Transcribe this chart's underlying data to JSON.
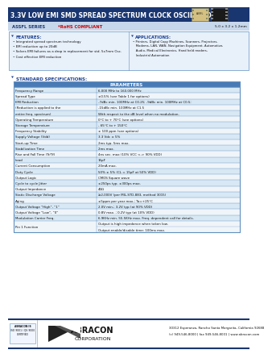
{
  "title": "3.3V LOW EMI SMD SPREAD SPECTRUM CLOCK OSCILLATOR",
  "series_label": "ASSFL SERIES",
  "rohs": "*RoHS COMPLIANT",
  "size_label": "5.0 x 3.2 x 1.2mm",
  "features_title": "FEATURES:",
  "features": [
    "• Integrated spread spectrum technology",
    "• EMI reduction up to 20dB",
    "• Solves EMI failures as a drop in replacement for std. 5x7mm Osc.",
    "• Cost effective EMI reduction"
  ],
  "applications_title": "APPLICATIONS:",
  "applications": [
    "• Printers, Digital Copy Machines, Scanners, Projectors,",
    "   Modems, LAN, WAN, Navigation Equipment, Automotive,",
    "   Audio, Medical Electronics, Hand held readers,",
    "   Industrial Automation"
  ],
  "spec_title": "STANDARD SPECIFICATIONS:",
  "table_rows": [
    [
      "Frequency Range",
      "6.000 MHz to 160.000 MHz"
    ],
    [
      "Spread Type",
      "±0.5% (see Table 1 for options)"
    ],
    [
      "EMI Reduction",
      "-7dBc min. 100MHz at C0.25; -9dBc min. 100MHz at C0.5;"
    ],
    [
      "(Reduction is applied to the",
      "-15dBc min. 100MHz at C1.5"
    ],
    [
      "entire freq. spectrum)",
      "With respect to the dB level when no modulation."
    ],
    [
      "Operating Temperature",
      "0°C to + 70°C (see options)"
    ],
    [
      "Storage Temperature",
      "- 65°C to + 150°C"
    ],
    [
      "Frequency Stability",
      "± 100 ppm (see options)"
    ],
    [
      "Supply Voltage (Vdd)",
      "3.3 Vdc ± 5%"
    ],
    [
      "Start-up Time",
      "2ms typ. 5ms max."
    ],
    [
      "Stabilization Time",
      "2ms max."
    ],
    [
      "Rise and Fall Time (Tr/Tf)",
      "4ns sec. max (10% VCC <-> 90% VDD)"
    ],
    [
      "Load",
      "15pF"
    ],
    [
      "Current Consumption",
      "20mA max."
    ],
    [
      "Duty Cycle",
      "50% ± 5% (CL = 15pF at 50% VDD)"
    ],
    [
      "Output Logic",
      "CMOS Square wave"
    ],
    [
      "Cycle to cycle Jitter",
      "±250ps typ. ±300ps max."
    ],
    [
      "Output Impedance",
      "40Ω"
    ],
    [
      "Static Discharge Voltage",
      "≥2,000V (per MIL-STD-883, method 3015)"
    ],
    [
      "Aging",
      "±5ppm per year max.; Ta=+25°C"
    ],
    [
      "Output Voltage “High”, “1”",
      "2.0V min.; 3.2V typ (at 90% VDD)"
    ],
    [
      "Output Voltage “Low”, “0”",
      "0.8V max. ; 0.2V typ (at 10% VDD)"
    ],
    [
      "Modulation Carrier Freq.",
      "6.9KHz min. 55.5KHz max. Freq. dependent call for details."
    ],
    [
      "Pin 1 Function",
      "Output is high impedance when taken low."
    ]
  ],
  "pin1_line2": "Output enable/disable time: 100ms max.",
  "footer_addr1": "30312 Esperanza, Rancho Santa Margarita, California 92688",
  "footer_addr2": "(c) 949-546-8000 | fax 949-546-8001 | www.abracon.com",
  "bg_header": "#1a3670",
  "bg_subheader": "#c8d8ec",
  "bg_table_header": "#4a7ab5",
  "bg_table_row_even": "#d8e8f4",
  "bg_table_row_odd": "#f0f5fa",
  "bg_features": "#e8f0fa",
  "text_white": "#ffffff",
  "text_dark": "#111111",
  "text_blue": "#1a3670",
  "accent_blue": "#1a4090",
  "border_color": "#6090c0",
  "footer_line_color": "#1a3670"
}
